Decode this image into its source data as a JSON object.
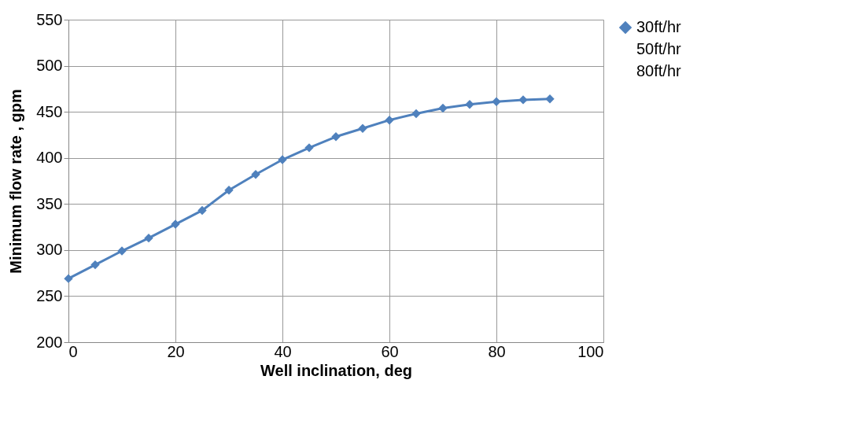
{
  "chart_data": {
    "type": "line",
    "xlabel": "Well inclination, deg",
    "ylabel": "Minimum flow rate ,  gpm",
    "x": [
      0,
      5,
      10,
      15,
      20,
      25,
      30,
      35,
      40,
      45,
      50,
      55,
      60,
      65,
      70,
      75,
      80,
      85,
      90
    ],
    "series": [
      {
        "name": "30ft/hr",
        "color": "#4f81bd",
        "values": [
          269,
          284,
          299,
          313,
          328,
          343,
          365,
          382,
          398,
          411,
          423,
          432,
          441,
          448,
          454,
          458,
          461,
          463,
          464
        ]
      },
      {
        "name": "50ft/hr",
        "values": [
          null,
          null,
          null,
          null,
          null,
          null,
          null,
          null,
          null,
          null,
          null,
          null,
          null,
          null,
          null,
          null,
          null,
          null,
          null
        ]
      },
      {
        "name": "80ft/hr",
        "values": [
          null,
          null,
          null,
          null,
          null,
          null,
          null,
          null,
          null,
          null,
          null,
          null,
          null,
          null,
          null,
          null,
          null,
          null,
          null
        ]
      }
    ],
    "xlim": [
      0,
      100
    ],
    "xticks": [
      0,
      20,
      40,
      60,
      80,
      100
    ],
    "ylim": [
      200,
      550
    ],
    "yticks": [
      200,
      250,
      300,
      350,
      400,
      450,
      500,
      550
    ],
    "grid": true,
    "legend": "right",
    "marker": "diamond",
    "line_style": "solid"
  }
}
